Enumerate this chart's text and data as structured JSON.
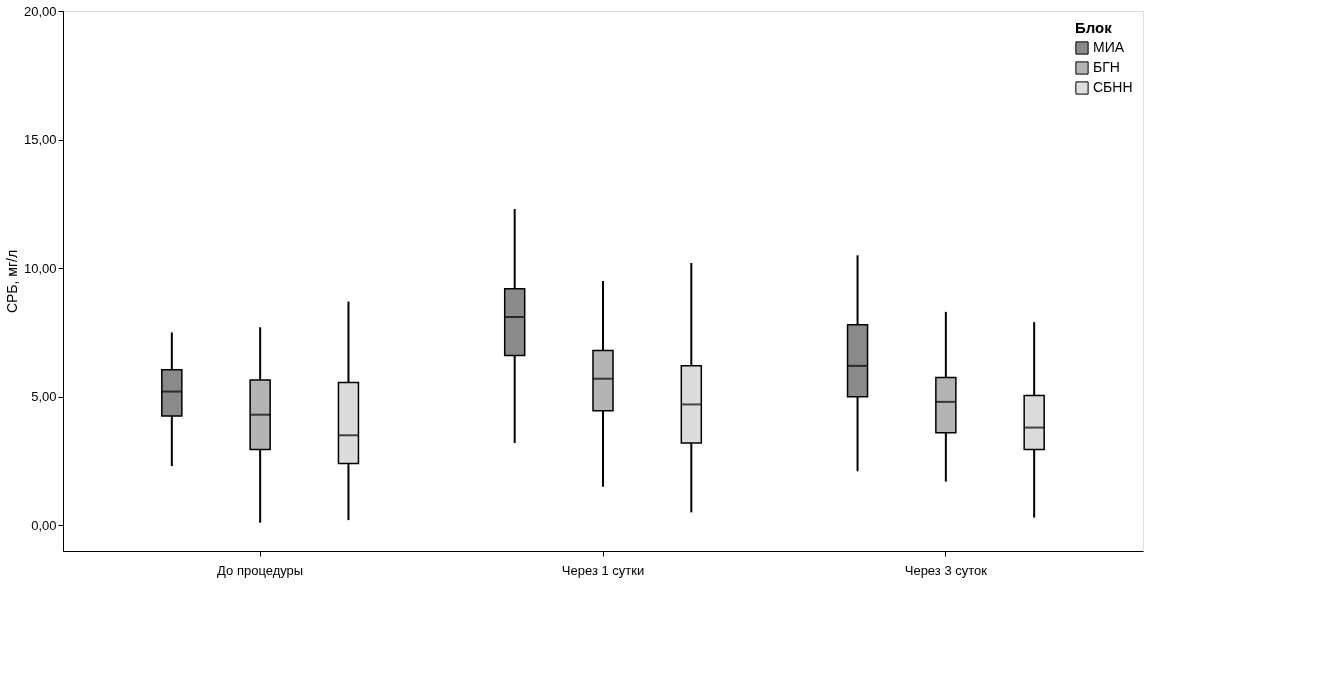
{
  "chart_data": {
    "type": "box",
    "ylabel": "СРБ, мг/л",
    "legend_title": "Блок",
    "legend": "top right",
    "grid": false,
    "categories": [
      "До процедуры",
      "Через 1 сутки",
      "Через 3 суток"
    ],
    "ylim": [
      -1,
      20
    ],
    "yticks": [
      {
        "value": 0,
        "label": "0,00"
      },
      {
        "value": 5,
        "label": "5,00"
      },
      {
        "value": 10,
        "label": "10,00"
      },
      {
        "value": 15,
        "label": "15,00"
      },
      {
        "value": 20,
        "label": "20,00"
      }
    ],
    "series": [
      {
        "name": "МИА",
        "color": "#8a8a8a",
        "boxes": [
          {
            "low": 2.3,
            "q1": 4.25,
            "median": 5.2,
            "q3": 6.05,
            "high": 7.5
          },
          {
            "low": 3.2,
            "q1": 6.6,
            "median": 8.1,
            "q3": 9.2,
            "high": 12.3
          },
          {
            "low": 2.1,
            "q1": 5.0,
            "median": 6.2,
            "q3": 7.8,
            "high": 10.5
          }
        ]
      },
      {
        "name": "БГН",
        "color": "#b4b4b4",
        "boxes": [
          {
            "low": 0.1,
            "q1": 2.95,
            "median": 4.3,
            "q3": 5.65,
            "high": 7.7
          },
          {
            "low": 1.5,
            "q1": 4.45,
            "median": 5.7,
            "q3": 6.8,
            "high": 9.5
          },
          {
            "low": 1.7,
            "q1": 3.6,
            "median": 4.8,
            "q3": 5.75,
            "high": 8.3
          }
        ]
      },
      {
        "name": "СБНН",
        "color": "#dcdcdc",
        "boxes": [
          {
            "low": 0.2,
            "q1": 2.4,
            "median": 3.5,
            "q3": 5.55,
            "high": 8.7
          },
          {
            "low": 0.5,
            "q1": 3.2,
            "median": 4.7,
            "q3": 6.2,
            "high": 10.2
          },
          {
            "low": 0.3,
            "q1": 2.95,
            "median": 3.8,
            "q3": 5.05,
            "high": 7.9
          }
        ]
      }
    ]
  }
}
